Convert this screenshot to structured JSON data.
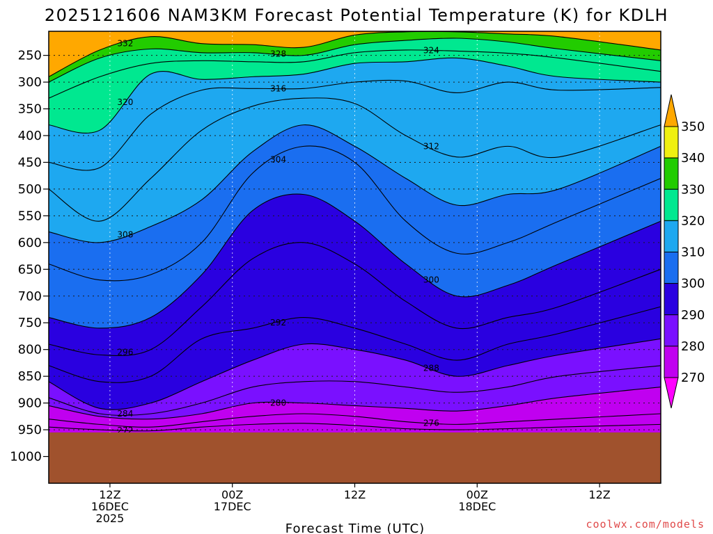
{
  "chart_data": {
    "type": "heatmap",
    "title": "2025121606 NAM3KM Forecast Potential Temperature (K) for KDLH",
    "xlabel": "Forecast Time (UTC)",
    "ylabel": "",
    "credit": "coolwx.com/models",
    "units": "K",
    "ylim": [
      1050,
      205
    ],
    "y_ticks": [
      250,
      300,
      350,
      400,
      450,
      500,
      550,
      600,
      650,
      700,
      750,
      800,
      850,
      900,
      950,
      1000
    ],
    "y_tick_labels": [
      "250",
      "300",
      "350",
      "400",
      "450",
      "500",
      "550",
      "600",
      "650",
      "700",
      "750",
      "800",
      "850",
      "900",
      "950",
      "1000"
    ],
    "xlim": [
      0,
      60
    ],
    "x_ticks": [
      {
        "hour": 6,
        "line1": "12Z",
        "line2": "16DEC",
        "line3": "2025"
      },
      {
        "hour": 18,
        "line1": "00Z",
        "line2": "17DEC",
        "line3": ""
      },
      {
        "hour": 30,
        "line1": "12Z",
        "line2": "",
        "line3": ""
      },
      {
        "hour": 42,
        "line1": "00Z",
        "line2": "18DEC",
        "line3": ""
      },
      {
        "hour": 54,
        "line1": "12Z",
        "line2": "",
        "line3": ""
      }
    ],
    "colorbar": {
      "levels": [
        270,
        280,
        290,
        300,
        310,
        320,
        330,
        340,
        350
      ],
      "labels": [
        "270",
        "280",
        "290",
        "300",
        "310",
        "320",
        "330",
        "340",
        "350"
      ],
      "colors": [
        "#ff00ff",
        "#c000f0",
        "#7a10ff",
        "#2a00e0",
        "#1a6ef0",
        "#1ea8f0",
        "#00e890",
        "#22cc00",
        "#f0f010",
        "#ffa800"
      ]
    },
    "ground_color": "#a0522d",
    "isentropes": [
      {
        "theta": 332,
        "p": [
          290,
          240,
          215,
          228,
          230,
          235,
          212,
          206,
          206,
          210,
          215,
          240
        ],
        "label": "332"
      },
      {
        "theta": 328,
        "p": [
          300,
          255,
          238,
          245,
          245,
          250,
          230,
          222,
          218,
          225,
          238,
          260
        ],
        "label": "328"
      },
      {
        "theta": 324,
        "p": [
          330,
          290,
          265,
          260,
          262,
          262,
          245,
          240,
          242,
          246,
          255,
          280
        ],
        "label": "324"
      },
      {
        "theta": 320,
        "p": [
          380,
          390,
          285,
          295,
          290,
          285,
          265,
          262,
          255,
          270,
          290,
          300
        ],
        "label": "320"
      },
      {
        "theta": 316,
        "p": [
          450,
          460,
          360,
          315,
          312,
          312,
          300,
          298,
          320,
          300,
          315,
          310
        ],
        "label": "316"
      },
      {
        "theta": 312,
        "p": [
          500,
          560,
          480,
          390,
          345,
          330,
          340,
          400,
          440,
          420,
          440,
          380
        ],
        "label": "312"
      },
      {
        "theta": 308,
        "p": [
          580,
          600,
          570,
          520,
          430,
          380,
          420,
          480,
          530,
          510,
          500,
          420
        ],
        "label": "308"
      },
      {
        "theta": 304,
        "p": [
          640,
          670,
          660,
          600,
          470,
          420,
          450,
          560,
          620,
          600,
          560,
          480
        ],
        "label": "304"
      },
      {
        "theta": 300,
        "p": [
          740,
          760,
          740,
          660,
          540,
          510,
          560,
          640,
          700,
          680,
          640,
          560
        ],
        "label": "300"
      },
      {
        "theta": 296,
        "p": [
          790,
          810,
          800,
          720,
          630,
          600,
          640,
          710,
          760,
          740,
          720,
          650
        ],
        "label": "296"
      },
      {
        "theta": 292,
        "p": [
          830,
          860,
          850,
          780,
          760,
          740,
          760,
          790,
          820,
          790,
          770,
          720
        ],
        "label": "292"
      },
      {
        "theta": 288,
        "p": [
          860,
          910,
          900,
          860,
          820,
          790,
          800,
          820,
          850,
          830,
          810,
          780
        ],
        "label": "288"
      },
      {
        "theta": 284,
        "p": [
          890,
          920,
          920,
          900,
          870,
          860,
          860,
          870,
          880,
          870,
          850,
          830
        ],
        "label": "284"
      },
      {
        "theta": 280,
        "p": [
          905,
          925,
          930,
          920,
          900,
          900,
          905,
          910,
          915,
          905,
          890,
          870
        ],
        "label": "280"
      },
      {
        "theta": 276,
        "p": [
          930,
          940,
          945,
          935,
          925,
          920,
          925,
          935,
          940,
          935,
          930,
          920
        ],
        "label": "276"
      },
      {
        "theta": 272,
        "p": [
          945,
          950,
          952,
          945,
          940,
          938,
          942,
          948,
          950,
          948,
          945,
          940
        ],
        "label": "272"
      }
    ],
    "isentrope_hours": [
      0,
      5,
      10,
      15,
      20,
      25,
      30,
      35,
      40,
      45,
      50,
      60
    ]
  }
}
